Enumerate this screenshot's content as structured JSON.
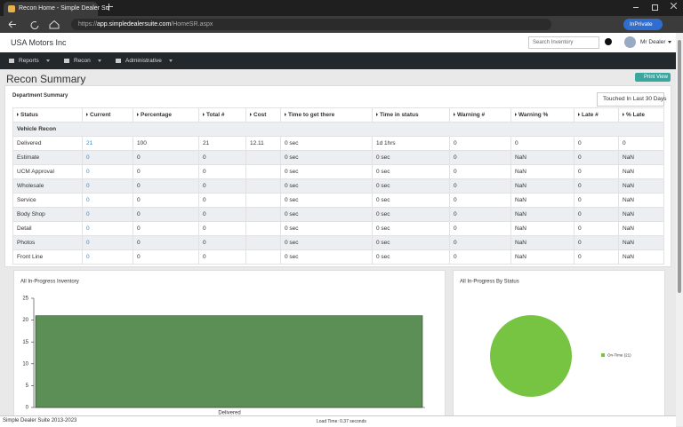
{
  "browser": {
    "tab_title": "Recon Home - Simple Dealer Su",
    "url_scheme": "https://",
    "url_host": "app.simpledealersuite.com",
    "url_path": "/HomeSR.aspx",
    "inprivate": "InPrivate"
  },
  "header": {
    "company": "USA Motors Inc",
    "search_placeholder": "Search Inventory",
    "user": "Mr Dealer"
  },
  "nav": [
    "Reports",
    "Recon",
    "Administrative"
  ],
  "page": {
    "title": "Recon Summary",
    "print_button": "Print View"
  },
  "summary": {
    "title": "Department Summary",
    "filter_button": "Touched In Last 30 Days",
    "headers": [
      "Status",
      "Current",
      "Percentage",
      "Total #",
      "Cost",
      "Time to get there",
      "Time in status",
      "Warning #",
      "Warning %",
      "Late #",
      "% Late"
    ],
    "group": "Vehicle Recon",
    "rows": [
      [
        "Delivered",
        "21",
        "100",
        "21",
        "12.11",
        "0 sec",
        "1d 1hrs",
        "0",
        "0",
        "0",
        "0"
      ],
      [
        "Estimate",
        "0",
        "0",
        "0",
        "",
        "0 sec",
        "0 sec",
        "0",
        "NaN",
        "0",
        "NaN"
      ],
      [
        "UCM Approval",
        "0",
        "0",
        "0",
        "",
        "0 sec",
        "0 sec",
        "0",
        "NaN",
        "0",
        "NaN"
      ],
      [
        "Wholesale",
        "0",
        "0",
        "0",
        "",
        "0 sec",
        "0 sec",
        "0",
        "NaN",
        "0",
        "NaN"
      ],
      [
        "Service",
        "0",
        "0",
        "0",
        "",
        "0 sec",
        "0 sec",
        "0",
        "NaN",
        "0",
        "NaN"
      ],
      [
        "Body Shop",
        "0",
        "0",
        "0",
        "",
        "0 sec",
        "0 sec",
        "0",
        "NaN",
        "0",
        "NaN"
      ],
      [
        "Detail",
        "0",
        "0",
        "0",
        "",
        "0 sec",
        "0 sec",
        "0",
        "NaN",
        "0",
        "NaN"
      ],
      [
        "Photos",
        "0",
        "0",
        "0",
        "",
        "0 sec",
        "0 sec",
        "0",
        "NaN",
        "0",
        "NaN"
      ],
      [
        "Front Line",
        "0",
        "0",
        "0",
        "",
        "0 sec",
        "0 sec",
        "0",
        "NaN",
        "0",
        "NaN"
      ]
    ]
  },
  "chart_data": [
    {
      "type": "bar",
      "title": "All In-Progress Inventory",
      "categories": [
        "Delivered"
      ],
      "values": [
        21
      ],
      "color": "#5b8f55",
      "ylim": [
        0,
        25
      ],
      "yticks": [
        0,
        5,
        10,
        15,
        20,
        25
      ]
    },
    {
      "type": "pie",
      "title": "All In-Progress By Status",
      "categories": [
        "On-Time (21)"
      ],
      "values": [
        21
      ],
      "colors": [
        "#77c442"
      ]
    }
  ],
  "footer": {
    "copyright": "Simple Dealer Suite 2013-2023",
    "load_time": "Load Time: 0.37 seconds"
  }
}
